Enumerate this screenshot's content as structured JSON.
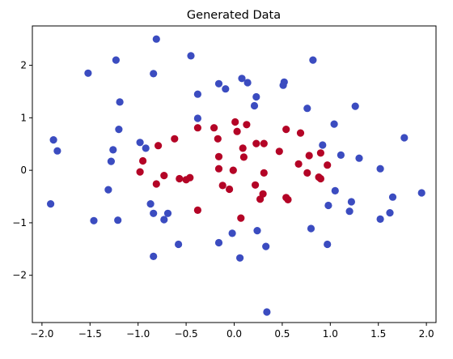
{
  "chart_data": {
    "type": "scatter",
    "title": "Generated Data",
    "xlabel": "",
    "ylabel": "",
    "xlim": [
      -2.1,
      2.1
    ],
    "ylim": [
      -2.9,
      2.75
    ],
    "xticks": [
      -2.0,
      -1.5,
      -1.0,
      -0.5,
      0.0,
      0.5,
      1.0,
      1.5,
      2.0
    ],
    "xtick_labels": [
      "−2.0",
      "−1.5",
      "−1.0",
      "−0.5",
      "0.0",
      "0.5",
      "1.0",
      "1.5",
      "2.0"
    ],
    "yticks": [
      -2,
      -1,
      0,
      1,
      2
    ],
    "ytick_labels": [
      "−2",
      "−1",
      "0",
      "1",
      "2"
    ],
    "grid": false,
    "series": [
      {
        "color": "#3b4cc0",
        "points": [
          [
            -0.81,
            2.5
          ],
          [
            -0.45,
            2.18
          ],
          [
            -1.23,
            2.1
          ],
          [
            -1.52,
            1.85
          ],
          [
            -0.84,
            1.84
          ],
          [
            0.82,
            2.1
          ],
          [
            -0.16,
            1.65
          ],
          [
            -0.09,
            1.55
          ],
          [
            0.08,
            1.75
          ],
          [
            0.14,
            1.67
          ],
          [
            0.52,
            1.68
          ],
          [
            0.51,
            1.62
          ],
          [
            -0.38,
            1.45
          ],
          [
            0.23,
            1.4
          ],
          [
            0.21,
            1.23
          ],
          [
            0.76,
            1.18
          ],
          [
            1.26,
            1.22
          ],
          [
            -1.19,
            1.3
          ],
          [
            -0.38,
            0.99
          ],
          [
            1.04,
            0.88
          ],
          [
            -1.2,
            0.78
          ],
          [
            -1.88,
            0.58
          ],
          [
            -1.84,
            0.37
          ],
          [
            -0.98,
            0.53
          ],
          [
            -0.92,
            0.42
          ],
          [
            -1.26,
            0.39
          ],
          [
            -1.28,
            0.17
          ],
          [
            0.92,
            0.48
          ],
          [
            1.11,
            0.29
          ],
          [
            1.3,
            0.23
          ],
          [
            1.77,
            0.62
          ],
          [
            1.52,
            0.03
          ],
          [
            -1.31,
            -0.37
          ],
          [
            1.05,
            -0.39
          ],
          [
            -1.91,
            -0.64
          ],
          [
            -0.87,
            -0.64
          ],
          [
            -0.69,
            -0.82
          ],
          [
            -0.84,
            -0.82
          ],
          [
            -0.73,
            -0.94
          ],
          [
            -1.46,
            -0.96
          ],
          [
            -1.21,
            -0.95
          ],
          [
            0.98,
            -0.67
          ],
          [
            1.22,
            -0.6
          ],
          [
            1.65,
            -0.51
          ],
          [
            1.95,
            -0.43
          ],
          [
            1.2,
            -0.78
          ],
          [
            1.62,
            -0.81
          ],
          [
            1.52,
            -0.93
          ],
          [
            0.8,
            -1.11
          ],
          [
            -0.02,
            -1.2
          ],
          [
            0.24,
            -1.15
          ],
          [
            -0.58,
            -1.41
          ],
          [
            -0.16,
            -1.38
          ],
          [
            0.33,
            -1.45
          ],
          [
            0.97,
            -1.41
          ],
          [
            -0.84,
            -1.64
          ],
          [
            0.06,
            -1.67
          ],
          [
            0.34,
            -2.7
          ]
        ]
      },
      {
        "color": "#b40426",
        "points": [
          [
            -0.38,
            0.81
          ],
          [
            -0.21,
            0.81
          ],
          [
            0.01,
            0.92
          ],
          [
            0.03,
            0.74
          ],
          [
            0.13,
            0.87
          ],
          [
            0.54,
            0.78
          ],
          [
            0.69,
            0.71
          ],
          [
            -0.62,
            0.6
          ],
          [
            -0.17,
            0.6
          ],
          [
            -0.79,
            0.47
          ],
          [
            0.09,
            0.42
          ],
          [
            0.23,
            0.51
          ],
          [
            0.31,
            0.51
          ],
          [
            0.47,
            0.36
          ],
          [
            0.78,
            0.28
          ],
          [
            0.9,
            0.33
          ],
          [
            -0.95,
            0.18
          ],
          [
            -0.16,
            0.26
          ],
          [
            0.1,
            0.25
          ],
          [
            0.67,
            0.12
          ],
          [
            0.97,
            0.1
          ],
          [
            -0.98,
            -0.03
          ],
          [
            -0.16,
            0.03
          ],
          [
            -0.01,
            0.0
          ],
          [
            0.31,
            -0.05
          ],
          [
            0.76,
            -0.05
          ],
          [
            0.88,
            -0.13
          ],
          [
            0.9,
            -0.16
          ],
          [
            -0.73,
            -0.1
          ],
          [
            -0.57,
            -0.16
          ],
          [
            -0.5,
            -0.18
          ],
          [
            -0.46,
            -0.14
          ],
          [
            -0.81,
            -0.26
          ],
          [
            -0.12,
            -0.29
          ],
          [
            -0.05,
            -0.36
          ],
          [
            0.22,
            -0.28
          ],
          [
            0.3,
            -0.45
          ],
          [
            0.27,
            -0.55
          ],
          [
            0.54,
            -0.52
          ],
          [
            0.56,
            -0.56
          ],
          [
            -0.38,
            -0.76
          ],
          [
            0.07,
            -0.91
          ]
        ]
      }
    ]
  }
}
